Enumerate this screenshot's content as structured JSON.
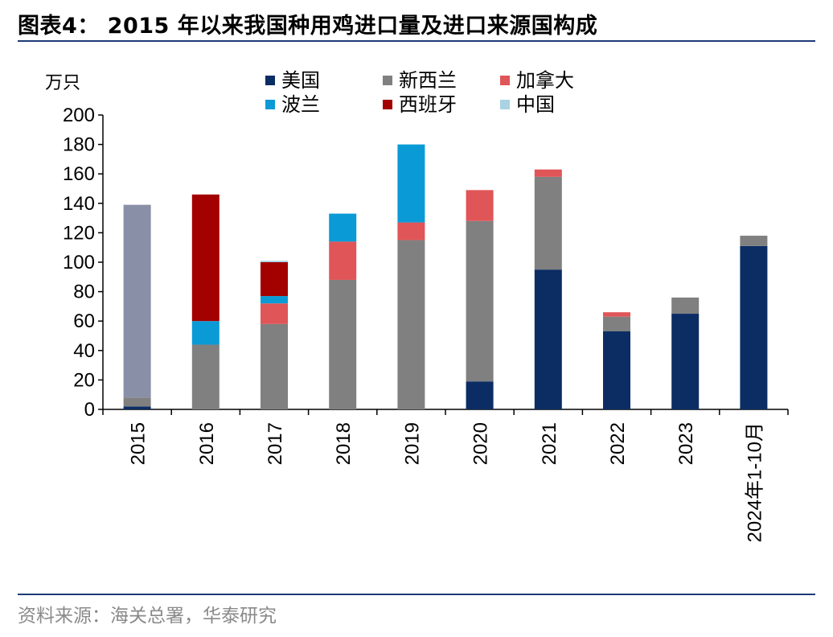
{
  "header": {
    "title": "图表4：  2015 年以来我国种用鸡进口量及进口来源国构成"
  },
  "footer": {
    "source": "资料来源：海关总署，华泰研究"
  },
  "chart_data": {
    "type": "bar",
    "stacked": true,
    "categories": [
      "2015",
      "2016",
      "2017",
      "2018",
      "2019",
      "2020",
      "2021",
      "2022",
      "2023",
      "2024年1-10月"
    ],
    "ylabel": "万只",
    "ylim": [
      0,
      200
    ],
    "yticks": [
      0,
      20,
      40,
      60,
      80,
      100,
      120,
      140,
      160,
      180,
      200
    ],
    "grid": false,
    "legend_position": "top",
    "series": [
      {
        "name": "美国",
        "color": "#0b2d64",
        "values": [
          2,
          0,
          0,
          0,
          0,
          19,
          95,
          53,
          65,
          111
        ]
      },
      {
        "name": "新西兰",
        "color": "#808080",
        "values": [
          6,
          44,
          58,
          88,
          115,
          109,
          63,
          10,
          11,
          7
        ]
      },
      {
        "name": "加拿大",
        "color": "#e05558",
        "values": [
          0,
          0,
          14,
          26,
          12,
          21,
          5,
          3,
          0,
          0
        ]
      },
      {
        "name": "波兰",
        "color": "#0a9bd6",
        "values": [
          0,
          16,
          5,
          19,
          53,
          0,
          0,
          0,
          0,
          0
        ]
      },
      {
        "name": "西班牙",
        "color": "#a30000",
        "values": [
          0,
          86,
          23,
          0,
          0,
          0,
          0,
          0,
          0,
          0
        ]
      },
      {
        "name": "中国",
        "color": "#a9d3e3",
        "values": [
          0,
          0,
          1,
          0,
          0,
          0,
          0,
          0,
          0,
          0
        ]
      }
    ],
    "extra_series": [
      {
        "color": "#8a8fa8",
        "values": [
          131,
          0,
          0,
          0,
          0,
          0,
          0,
          0,
          0,
          0
        ]
      }
    ]
  }
}
